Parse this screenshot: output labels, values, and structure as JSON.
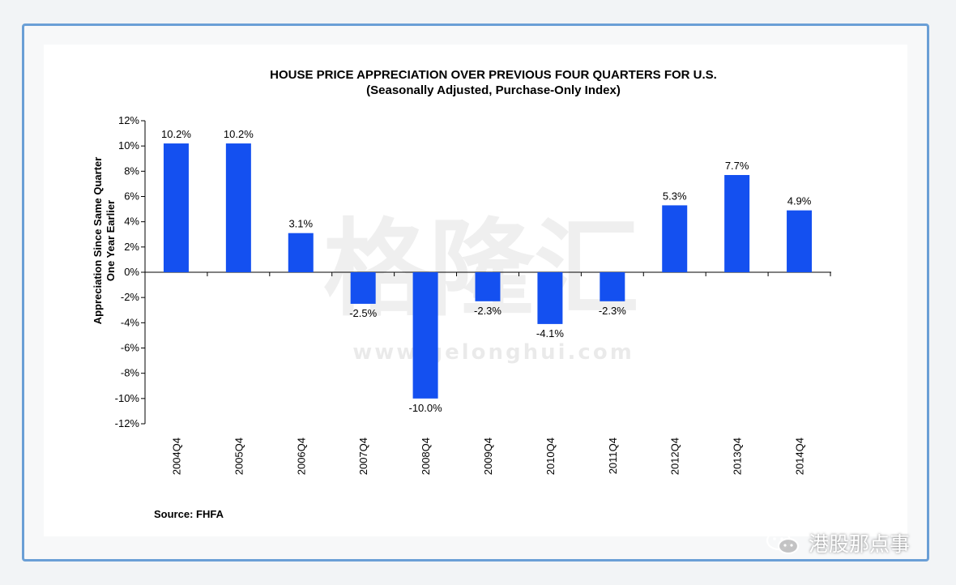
{
  "chart_data": {
    "type": "bar",
    "title": "HOUSE PRICE APPRECIATION OVER PREVIOUS FOUR QUARTERS FOR U.S.",
    "subtitle": "(Seasonally Adjusted, Purchase-Only Index)",
    "ylabel_line1": "Appreciation Since Same Quarter",
    "ylabel_line2": "One Year Earlier",
    "xlabel": "",
    "categories": [
      "2004Q4",
      "2005Q4",
      "2006Q4",
      "2007Q4",
      "2008Q4",
      "2009Q4",
      "2010Q4",
      "2011Q4",
      "2012Q4",
      "2013Q4",
      "2014Q4"
    ],
    "values": [
      10.2,
      10.2,
      3.1,
      -2.5,
      -10.0,
      -2.3,
      -4.1,
      -2.3,
      5.3,
      7.7,
      4.9
    ],
    "value_labels": [
      "10.2%",
      "10.2%",
      "3.1%",
      "-2.5%",
      "-10.0%",
      "-2.3%",
      "-4.1%",
      "-2.3%",
      "5.3%",
      "7.7%",
      "4.9%"
    ],
    "yticks": [
      12,
      10,
      8,
      6,
      4,
      2,
      0,
      -2,
      -4,
      -6,
      -8,
      -10,
      -12
    ],
    "ytick_labels": [
      "12%",
      "10%",
      "8%",
      "6%",
      "4%",
      "2%",
      "0%",
      "-2%",
      "-4%",
      "-6%",
      "-8%",
      "-10%",
      "-12%"
    ],
    "ylim": [
      -12,
      12
    ],
    "bar_color": "#1450f0",
    "grid": false,
    "legend": "none"
  },
  "source_text": "Source:  FHFA",
  "watermark": {
    "main": "格隆汇",
    "url": "www.gelonghui.com"
  },
  "brand": {
    "name": "港股那点事",
    "icon": "wechat-icon"
  }
}
